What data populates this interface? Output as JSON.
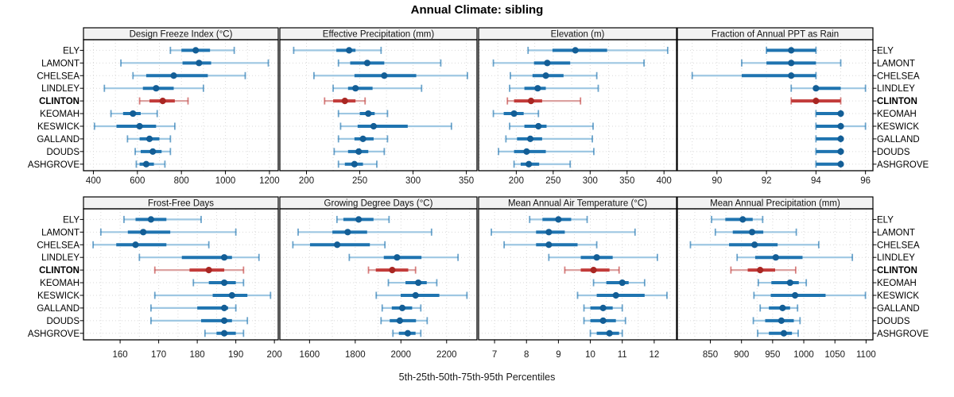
{
  "title": "Annual Climate: sibling",
  "caption": "5th-25th-50th-75th-95th Percentiles",
  "colors": {
    "blue_main": "#1F74B0",
    "blue_light": "#9EC7E2",
    "blue_dot": "#135E96",
    "red_main": "#C23B3A",
    "red_light": "#DCA2A1",
    "red_dot": "#A92723",
    "grid": "#D9D9D9",
    "strip_bg": "#F2F2F2",
    "border": "#000000",
    "text": "#1A1A1A"
  },
  "chart_data": {
    "type": "dotplot-trellis",
    "title": "Annual Climate: sibling",
    "xlabel": "5th-25th-50th-75th-95th Percentiles",
    "legend_position": "none",
    "grid": "dotted",
    "percentiles": [
      5,
      25,
      50,
      75,
      95
    ],
    "sites": [
      "ELY",
      "LAMONT",
      "CHELSEA",
      "LINDLEY",
      "CLINTON",
      "KEOMAH",
      "KESWICK",
      "GALLAND",
      "DOUDS",
      "ASHGROVE"
    ],
    "highlight_site": "CLINTON",
    "panels": [
      {
        "title": "Design Freeze Index (°C)",
        "slug": "design-freeze-index",
        "row": 0,
        "col": 0,
        "xlim": [
          355,
          1240
        ],
        "ticks": [
          400,
          600,
          800,
          1000,
          1200
        ],
        "grid_step": 100,
        "values": [
          [
            750,
            800,
            865,
            930,
            1040
          ],
          [
            525,
            805,
            880,
            935,
            1195
          ],
          [
            580,
            640,
            765,
            920,
            1090
          ],
          [
            450,
            625,
            685,
            765,
            900
          ],
          [
            610,
            655,
            715,
            770,
            830
          ],
          [
            480,
            535,
            580,
            615,
            690
          ],
          [
            405,
            505,
            610,
            685,
            770
          ],
          [
            555,
            610,
            655,
            700,
            750
          ],
          [
            590,
            615,
            670,
            710,
            750
          ],
          [
            595,
            610,
            640,
            675,
            725
          ]
        ]
      },
      {
        "title": "Effective Precipitation (mm)",
        "slug": "effective-precipitation",
        "row": 0,
        "col": 1,
        "xlim": [
          175,
          360
        ],
        "ticks": [
          200,
          250,
          300,
          350
        ],
        "grid_step": 25,
        "values": [
          [
            188,
            228,
            240,
            246,
            270
          ],
          [
            230,
            241,
            257,
            273,
            326
          ],
          [
            207,
            245,
            273,
            303,
            351
          ],
          [
            225,
            239,
            246,
            262,
            308
          ],
          [
            217,
            225,
            236,
            246,
            255
          ],
          [
            230,
            250,
            258,
            264,
            276
          ],
          [
            232,
            248,
            263,
            295,
            336
          ],
          [
            230,
            245,
            253,
            263,
            276
          ],
          [
            226,
            239,
            249,
            258,
            273
          ],
          [
            230,
            236,
            245,
            253,
            266
          ]
        ]
      },
      {
        "title": "Elevation (m)",
        "slug": "elevation",
        "row": 0,
        "col": 2,
        "xlim": [
          149,
          417
        ],
        "ticks": [
          200,
          250,
          300,
          350,
          400
        ],
        "grid_step": 25,
        "values": [
          [
            216,
            249,
            280,
            323,
            405
          ],
          [
            169,
            224,
            242,
            273,
            373
          ],
          [
            192,
            222,
            240,
            264,
            309
          ],
          [
            191,
            211,
            229,
            240,
            311
          ],
          [
            188,
            197,
            220,
            235,
            287
          ],
          [
            169,
            183,
            197,
            210,
            230
          ],
          [
            191,
            211,
            230,
            241,
            304
          ],
          [
            186,
            201,
            219,
            235,
            303
          ],
          [
            176,
            197,
            214,
            240,
            305
          ],
          [
            197,
            206,
            217,
            231,
            273
          ]
        ]
      },
      {
        "title": "Fraction of Annual PPT as Rain",
        "slug": "fraction-ppt-rain",
        "row": 0,
        "col": 3,
        "xlim": [
          88.4,
          96.3
        ],
        "ticks": [
          90,
          92,
          94,
          96
        ],
        "grid_step": 1,
        "values": [
          [
            92,
            92,
            93,
            94,
            94
          ],
          [
            91,
            92,
            93,
            94,
            95
          ],
          [
            89,
            91,
            93,
            94,
            94
          ],
          [
            93,
            94,
            94,
            95,
            96
          ],
          [
            93,
            93,
            94,
            95,
            95
          ],
          [
            94,
            94,
            95,
            95,
            95
          ],
          [
            94,
            94,
            95,
            95,
            96
          ],
          [
            94,
            94,
            95,
            95,
            95
          ],
          [
            94,
            94,
            95,
            95,
            95
          ],
          [
            94,
            94,
            95,
            95,
            95
          ]
        ]
      },
      {
        "title": "Frost-Free Days",
        "slug": "frost-free-days",
        "row": 1,
        "col": 0,
        "xlim": [
          150.5,
          201
        ],
        "ticks": [
          160,
          170,
          180,
          190,
          200
        ],
        "grid_step": 5,
        "values": [
          [
            161,
            164,
            168,
            172,
            181
          ],
          [
            155,
            162,
            166,
            173,
            190
          ],
          [
            153,
            159,
            164,
            172,
            183
          ],
          [
            165,
            176,
            187,
            189,
            196
          ],
          [
            169,
            178,
            183,
            187,
            192
          ],
          [
            179,
            183,
            187,
            190,
            192
          ],
          [
            169,
            184,
            189,
            193,
            199
          ],
          [
            168,
            180,
            187,
            188,
            190
          ],
          [
            168,
            181,
            187,
            189,
            193
          ],
          [
            182,
            185,
            187,
            190,
            192
          ]
        ]
      },
      {
        "title": "Growing Degree Days (°C)",
        "slug": "growing-degree-days",
        "row": 1,
        "col": 1,
        "xlim": [
          1470,
          2333
        ],
        "ticks": [
          1600,
          1800,
          2000,
          2200
        ],
        "grid_step": 100,
        "values": [
          [
            1720,
            1748,
            1815,
            1880,
            1948
          ],
          [
            1550,
            1700,
            1767,
            1852,
            2134
          ],
          [
            1527,
            1602,
            1721,
            1864,
            1930
          ],
          [
            1774,
            1925,
            1983,
            2090,
            2250
          ],
          [
            1858,
            1890,
            1962,
            2032,
            2064
          ],
          [
            1945,
            2020,
            2076,
            2113,
            2157
          ],
          [
            1892,
            1999,
            2064,
            2168,
            2289
          ],
          [
            1918,
            1960,
            2006,
            2049,
            2087
          ],
          [
            1913,
            1951,
            1995,
            2066,
            2115
          ],
          [
            1965,
            1991,
            2030,
            2064,
            2087
          ]
        ]
      },
      {
        "title": "Mean Annual Air Temperature (°C)",
        "slug": "mean-annual-air-temp",
        "row": 1,
        "col": 2,
        "xlim": [
          6.5,
          12.7
        ],
        "ticks": [
          7,
          8,
          9,
          10,
          11,
          12
        ],
        "grid_step": 0.5,
        "values": [
          [
            8.1,
            8.5,
            9.0,
            9.4,
            9.9
          ],
          [
            6.9,
            8.3,
            8.7,
            9.2,
            11.4
          ],
          [
            7.3,
            8.3,
            8.7,
            9.6,
            10.2
          ],
          [
            8.7,
            9.7,
            10.2,
            10.7,
            12.1
          ],
          [
            9.2,
            9.7,
            10.1,
            10.6,
            10.9
          ],
          [
            10.1,
            10.5,
            11.0,
            11.2,
            11.7
          ],
          [
            9.6,
            10.2,
            10.8,
            11.7,
            12.4
          ],
          [
            9.8,
            10.0,
            10.4,
            10.7,
            11.0
          ],
          [
            9.8,
            10.0,
            10.4,
            10.8,
            11.1
          ],
          [
            10.0,
            10.2,
            10.6,
            10.9,
            11.0
          ]
        ]
      },
      {
        "title": "Mean Annual Precipitation (mm)",
        "slug": "mean-annual-precip",
        "row": 1,
        "col": 3,
        "xlim": [
          797,
          1111
        ],
        "ticks": [
          850,
          900,
          950,
          1000,
          1050,
          1100
        ],
        "grid_step": 25,
        "values": [
          [
            852,
            874,
            902,
            918,
            934
          ],
          [
            858,
            886,
            917,
            935,
            988
          ],
          [
            818,
            880,
            921,
            958,
            1024
          ],
          [
            893,
            922,
            955,
            998,
            1078
          ],
          [
            883,
            910,
            930,
            954,
            987
          ],
          [
            927,
            948,
            978,
            992,
            1004
          ],
          [
            920,
            947,
            986,
            1035,
            1099
          ],
          [
            930,
            944,
            966,
            978,
            990
          ],
          [
            919,
            938,
            964,
            984,
            994
          ],
          [
            926,
            944,
            968,
            981,
            991
          ]
        ]
      }
    ]
  }
}
